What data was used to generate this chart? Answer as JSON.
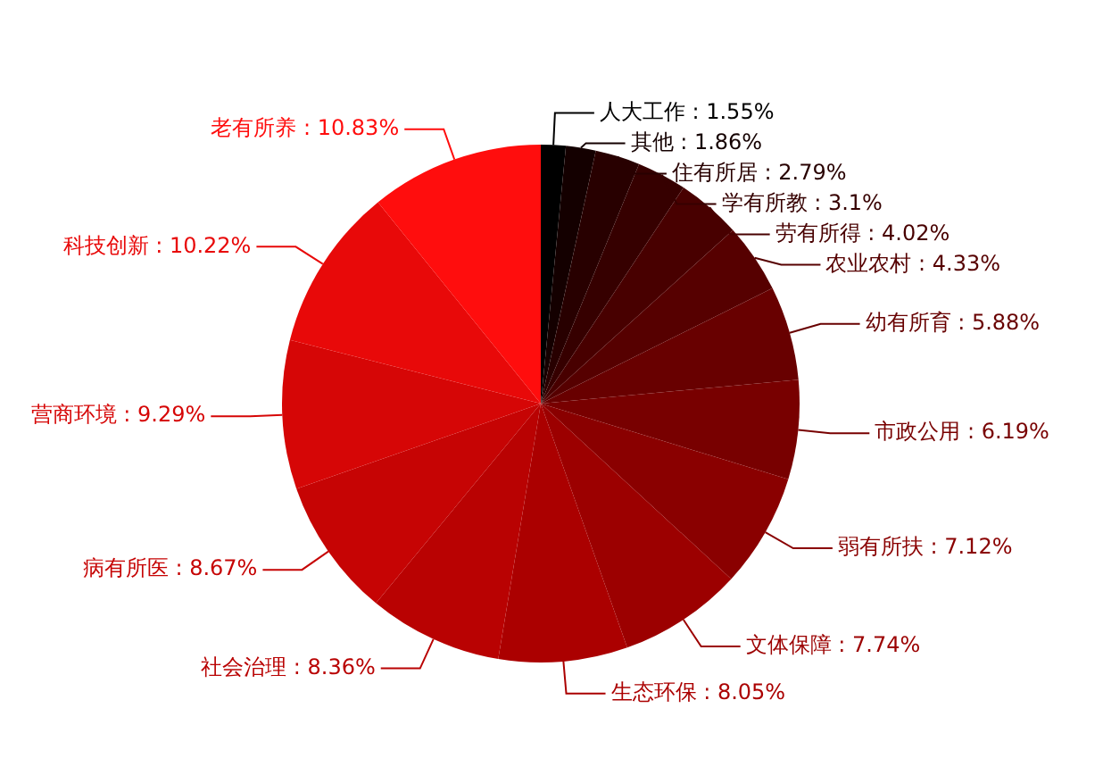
{
  "chart_data": {
    "type": "pie",
    "categories": [
      "人大工作",
      "其他",
      "住有所居",
      "学有所教",
      "劳有所得",
      "农业农村",
      "幼有所育",
      "市政公用",
      "弱有所扶",
      "文体保障",
      "生态环保",
      "社会治理",
      "病有所医",
      "营商环境",
      "科技创新",
      "老有所养"
    ],
    "values": [
      1.55,
      1.86,
      2.79,
      3.1,
      4.02,
      4.33,
      5.88,
      6.19,
      7.12,
      7.74,
      8.05,
      8.36,
      8.67,
      9.29,
      10.22,
      10.83
    ],
    "value_labels": [
      ": 1.55%",
      ": 1.86%",
      ": 2.79%",
      ": 3.1%",
      ": 4.02%",
      ": 4.33%",
      ": 5.88%",
      ": 6.19%",
      ": 7.12%",
      ": 7.74%",
      ": 8.05%",
      ": 8.36%",
      ": 8.67%",
      ": 9.29%",
      ": 10.22%",
      ": 10.83%"
    ],
    "colors": [
      "#000000",
      "#140000",
      "#280000",
      "#360000",
      "#480000",
      "#560000",
      "#680000",
      "#780000",
      "#8a0000",
      "#9c0000",
      "#ab0000",
      "#b90202",
      "#c60404",
      "#d60606",
      "#e80909",
      "#ff0d0d"
    ],
    "legend": false
  }
}
